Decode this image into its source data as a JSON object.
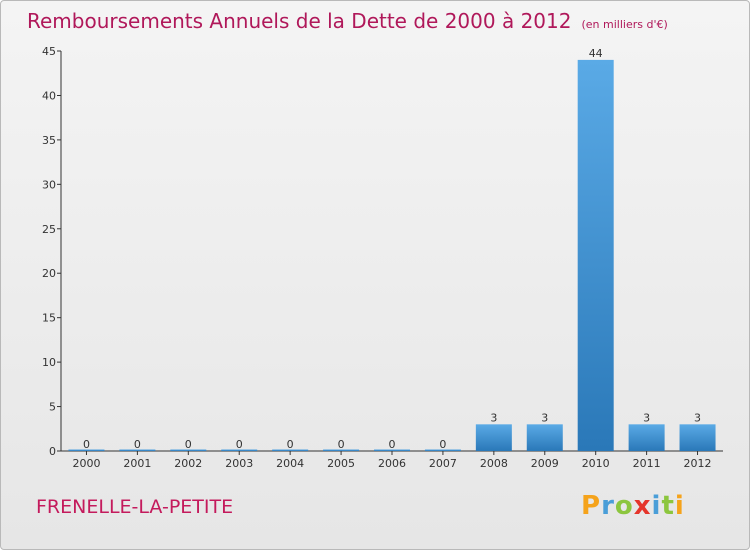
{
  "header": {
    "title": "Remboursements Annuels de la Dette de 2000 à 2012",
    "unit": "(en milliers d'€)"
  },
  "place": "FRENELLE-LA-PETITE",
  "logo": {
    "letters": [
      "P",
      "r",
      "o",
      "x",
      "i",
      "t",
      "i"
    ],
    "colors": [
      "#f5a31b",
      "#4a9ed8",
      "#8cc63e",
      "#e5352b",
      "#4a9ed8",
      "#8cc63e",
      "#f5a31b"
    ]
  },
  "colors": {
    "bar_light": "#5aaae6",
    "bar_dark": "#2a78b8",
    "axis": "#333333"
  },
  "chart_data": {
    "type": "bar",
    "title": "Remboursements Annuels de la Dette de 2000 à 2012",
    "categories": [
      "2000",
      "2001",
      "2002",
      "2003",
      "2004",
      "2005",
      "2006",
      "2007",
      "2008",
      "2009",
      "2010",
      "2011",
      "2012"
    ],
    "values": [
      0,
      0,
      0,
      0,
      0,
      0,
      0,
      0,
      3,
      3,
      44,
      3,
      3
    ],
    "ylim": [
      0,
      45
    ],
    "yticks": [
      0,
      5,
      10,
      15,
      20,
      25,
      30,
      35,
      40,
      45
    ],
    "grid": false,
    "data_labels": true
  }
}
